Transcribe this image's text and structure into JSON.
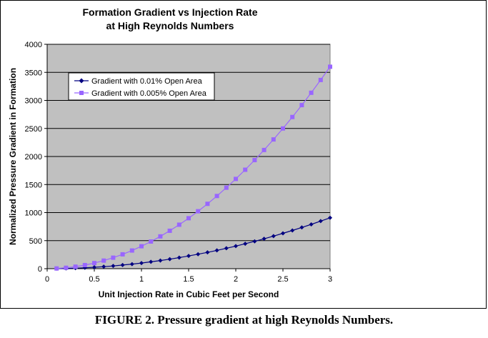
{
  "chart_data": {
    "type": "line",
    "title": "Formation Gradient vs Injection Rate",
    "subtitle": "at High Reynolds Numbers",
    "xlabel": "Unit Injection Rate in Cubic Feet per Second",
    "ylabel": "Normalized Pressure Gradient in Formation",
    "xlim": [
      0,
      3
    ],
    "ylim": [
      0,
      4000
    ],
    "x_ticks": [
      "0",
      "0.5",
      "1",
      "1.5",
      "2",
      "2.5",
      "3"
    ],
    "y_ticks": [
      "0",
      "500",
      "1000",
      "1500",
      "2000",
      "2500",
      "3000",
      "3500",
      "4000"
    ],
    "grid": "horizontal",
    "legend_position": "top-left",
    "plot_background": "#c0c0c0",
    "series": [
      {
        "name": "Gradient with 0.01% Open Area",
        "color": "#000080",
        "marker": "diamond",
        "x": [
          0.1,
          0.2,
          0.3,
          0.4,
          0.5,
          0.6,
          0.7,
          0.8,
          0.9,
          1.0,
          1.1,
          1.2,
          1.3,
          1.4,
          1.5,
          1.6,
          1.7,
          1.8,
          1.9,
          2.0,
          2.1,
          2.2,
          2.3,
          2.4,
          2.5,
          2.6,
          2.7,
          2.8,
          2.9,
          3.0
        ],
        "values": [
          1,
          4,
          9,
          16,
          25,
          36,
          49,
          65,
          82,
          101,
          122,
          145,
          170,
          197,
          227,
          258,
          291,
          326,
          364,
          403,
          444,
          488,
          533,
          581,
          630,
          681,
          735,
          790,
          848,
          907
        ]
      },
      {
        "name": "Gradient with 0.005% Open Area",
        "color": "#9966ff",
        "marker": "square",
        "x": [
          0.1,
          0.2,
          0.3,
          0.4,
          0.5,
          0.6,
          0.7,
          0.8,
          0.9,
          1.0,
          1.1,
          1.2,
          1.3,
          1.4,
          1.5,
          1.6,
          1.7,
          1.8,
          1.9,
          2.0,
          2.1,
          2.2,
          2.3,
          2.4,
          2.5,
          2.6,
          2.7,
          2.8,
          2.9,
          3.0
        ],
        "values": [
          4,
          16,
          36,
          64,
          100,
          144,
          196,
          256,
          324,
          400,
          484,
          576,
          676,
          784,
          900,
          1024,
          1156,
          1296,
          1444,
          1600,
          1764,
          1936,
          2116,
          2304,
          2500,
          2704,
          2916,
          3136,
          3364,
          3600
        ]
      }
    ]
  },
  "caption": "FIGURE 2. Pressure gradient at high Reynolds Numbers."
}
